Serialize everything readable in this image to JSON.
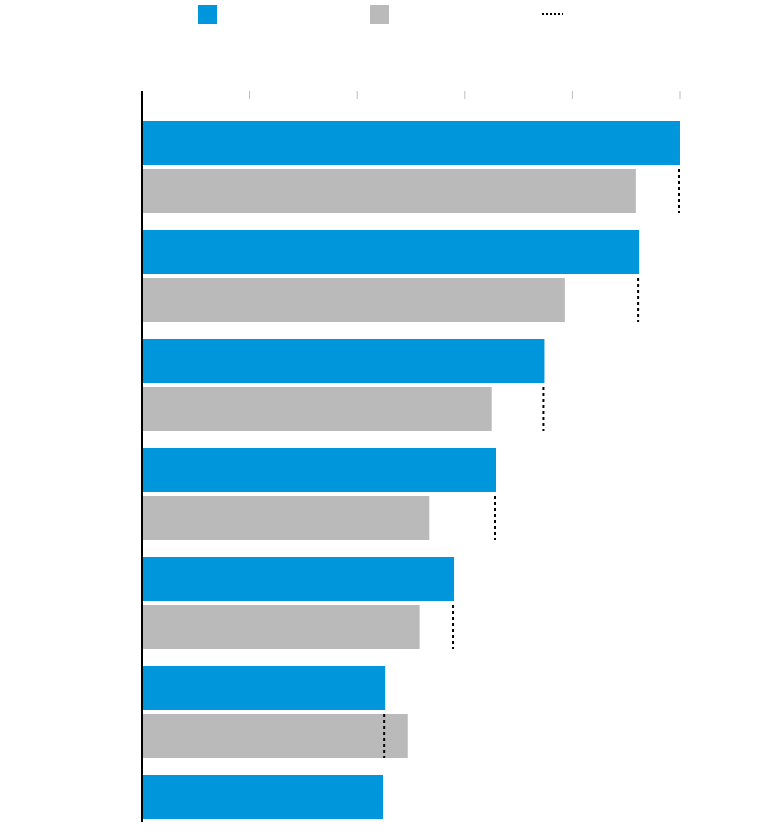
{
  "chart_data": {
    "type": "bar",
    "orientation": "horizontal",
    "title": "",
    "xlabel": "",
    "ylabel": "",
    "xlim": [
      0,
      5
    ],
    "grid": false,
    "legend_position": "top",
    "colors": {
      "series_a": "#0096dc",
      "series_b": "#bababa",
      "marker": "#000000",
      "axis": "#000000",
      "tick": "#bdbdbd"
    },
    "legend": [
      {
        "kind": "swatch",
        "color": "#0096dc",
        "label": ""
      },
      {
        "kind": "swatch",
        "color": "#bababa",
        "label": ""
      },
      {
        "kind": "dotted-line",
        "color": "#000000",
        "label": ""
      }
    ],
    "categories": [
      "",
      "",
      "",
      "",
      "",
      "",
      ""
    ],
    "series": [
      {
        "color": "#0096dc",
        "values": [
          5.0,
          4.62,
          3.74,
          3.29,
          2.9,
          2.26,
          2.24
        ]
      },
      {
        "color": "#bababa",
        "values": [
          4.59,
          3.93,
          3.25,
          2.67,
          2.58,
          2.47,
          null
        ]
      }
    ],
    "markers": [
      5.0,
      4.62,
      3.74,
      3.29,
      2.9,
      2.26,
      null
    ]
  }
}
